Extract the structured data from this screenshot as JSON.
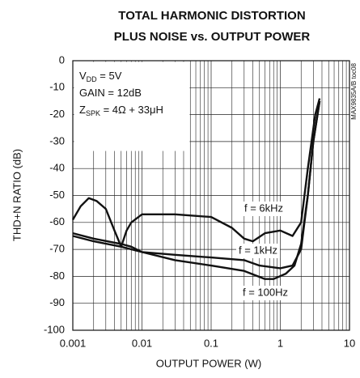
{
  "title_lines": [
    "TOTAL HARMONIC DISTORTION",
    "PLUS NOISE vs. OUTPUT POWER"
  ],
  "side_note": "MAX9835A/B toc08",
  "conditions": [
    {
      "main": "V",
      "sub": "DD",
      "rest": " = 5V"
    },
    {
      "main": "GAIN = 12dB"
    },
    {
      "main": "Z",
      "sub": "SPK",
      "rest": " = 4Ω + 33μH"
    }
  ],
  "chart_data": {
    "type": "line",
    "x_label": "OUTPUT POWER (W)",
    "y_label": "THD+N RATIO (dB)",
    "xlog": true,
    "xlim": [
      0.001,
      10
    ],
    "xticks": [
      0.001,
      0.01,
      0.1,
      1,
      10
    ],
    "ylim": [
      -100,
      0
    ],
    "yticks": [
      0,
      -10,
      -20,
      -30,
      -40,
      -50,
      -60,
      -70,
      -80,
      -90,
      -100
    ],
    "grid": true,
    "minor_grid": true,
    "series": [
      {
        "name": "f = 6kHz",
        "color": "#111111",
        "x": [
          0.001,
          0.0013,
          0.0017,
          0.0022,
          0.003,
          0.004,
          0.005,
          0.006,
          0.007,
          0.01,
          0.03,
          0.1,
          0.2,
          0.3,
          0.4,
          0.6,
          1,
          1.5,
          2,
          2.5,
          3.2,
          3.7
        ],
        "values": [
          -59,
          -54,
          -51,
          -52,
          -55,
          -63,
          -69,
          -63,
          -60,
          -57,
          -57,
          -58,
          -62,
          -66,
          -67,
          -64,
          -63,
          -65,
          -60,
          -40,
          -20,
          -14
        ]
      },
      {
        "name": "f = 1kHz",
        "color": "#111111",
        "x": [
          0.001,
          0.002,
          0.005,
          0.007,
          0.01,
          0.03,
          0.1,
          0.3,
          0.5,
          1,
          1.5,
          2,
          2.5,
          3,
          3.7
        ],
        "values": [
          -64,
          -66,
          -68,
          -69,
          -71,
          -72,
          -73,
          -74,
          -76,
          -77,
          -76,
          -70,
          -50,
          -30,
          -15
        ]
      },
      {
        "name": "f = 100Hz",
        "color": "#111111",
        "x": [
          0.001,
          0.002,
          0.005,
          0.01,
          0.03,
          0.1,
          0.3,
          0.6,
          0.8,
          1.2,
          1.6,
          2,
          2.5,
          3,
          3.7
        ],
        "values": [
          -65,
          -67,
          -69,
          -71,
          -74,
          -76,
          -78,
          -81,
          -81,
          -79,
          -76,
          -68,
          -50,
          -30,
          -15
        ]
      }
    ]
  }
}
